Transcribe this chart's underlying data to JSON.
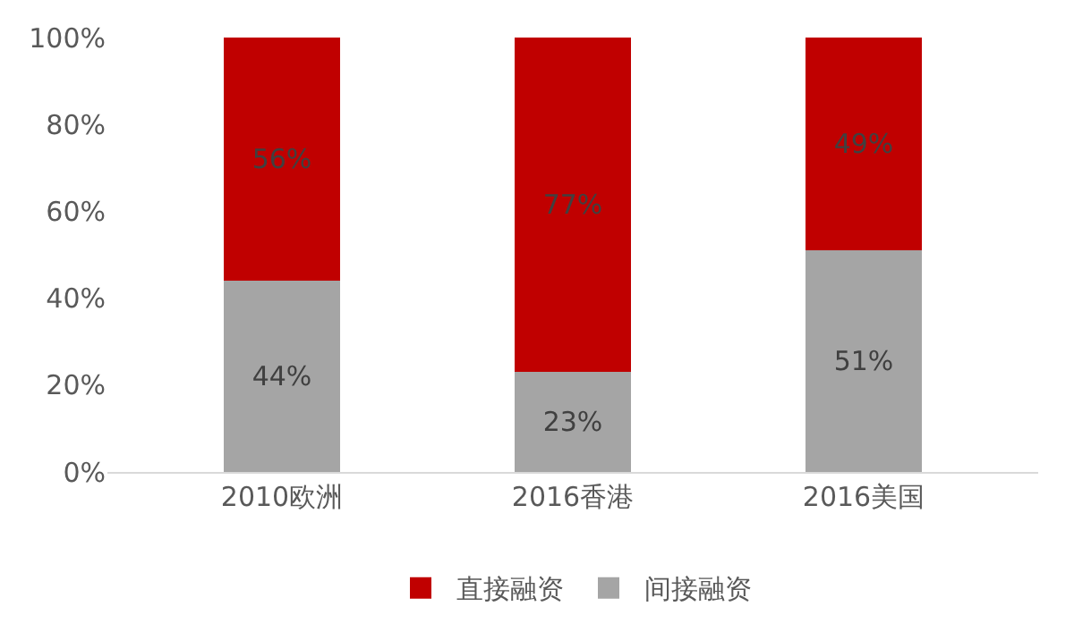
{
  "chart_data": {
    "type": "bar",
    "stacked": true,
    "categories": [
      "2010欧洲",
      "2016香港",
      "2016美国"
    ],
    "series": [
      {
        "name": "间接融资",
        "color": "#a5a5a5",
        "values": [
          44,
          23,
          51
        ],
        "value_labels": [
          "44%",
          "23%",
          "51%"
        ]
      },
      {
        "name": "直接融资",
        "color": "#c00000",
        "values": [
          56,
          77,
          49
        ],
        "value_labels": [
          "56%",
          "77%",
          "49%"
        ]
      }
    ],
    "ylim": [
      0,
      100
    ],
    "yticks": [
      {
        "value": 0,
        "label": "0%"
      },
      {
        "value": 20,
        "label": "20%"
      },
      {
        "value": 40,
        "label": "40%"
      },
      {
        "value": 60,
        "label": "60%"
      },
      {
        "value": 80,
        "label": "80%"
      },
      {
        "value": 100,
        "label": "100%"
      }
    ],
    "grid": false,
    "legend": "bottom"
  }
}
